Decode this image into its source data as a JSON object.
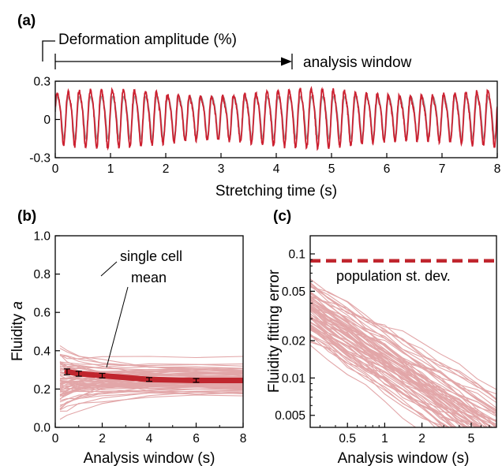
{
  "chart_data": [
    {
      "panel": "(a)",
      "type": "line",
      "header": "Deformation amplitude (%)",
      "arrow_label": "analysis window",
      "xlabel": "Stretching time (s)",
      "ylabel": "",
      "xlim": [
        0,
        8
      ],
      "ylim": [
        -0.3,
        0.3
      ],
      "xticks": [
        "0",
        "1",
        "2",
        "3",
        "4",
        "5",
        "6",
        "7",
        "8"
      ],
      "yticks": [
        "-0.3",
        "0",
        "0.3"
      ],
      "analysis_window_end": 4.3,
      "series_colors": {
        "applied": "#a0a0a0",
        "measured": "#cc2030"
      },
      "oscillation_periods": 40
    },
    {
      "panel": "(b)",
      "type": "line",
      "xlabel": "Analysis window (s)",
      "ylabel_text": "Fluidity ",
      "ylabel_symbol": "a",
      "xlim": [
        0,
        8
      ],
      "ylim": [
        0,
        1.0
      ],
      "xticks": [
        "0",
        "2",
        "4",
        "6",
        "8"
      ],
      "yticks": [
        "0.0",
        "0.2",
        "0.4",
        "0.6",
        "0.8",
        "1.0"
      ],
      "annotations": [
        "single cell",
        "mean"
      ],
      "mean": {
        "x": [
          0.5,
          1,
          2,
          4,
          6,
          8
        ],
        "y": [
          0.29,
          0.28,
          0.27,
          0.25,
          0.245,
          0.245
        ],
        "err": [
          0.015,
          0.013,
          0.012,
          0.01,
          0.01,
          0
        ]
      },
      "single_cell_count": 70,
      "colors": {
        "single": "#e2a6a8",
        "mean": "#c0262e"
      }
    },
    {
      "panel": "(c)",
      "type": "line",
      "xlabel": "Analysis window (s)",
      "ylabel": "Fluidity fitting error",
      "xscale": "log",
      "yscale": "log",
      "xlim": [
        0.25,
        8
      ],
      "ylim": [
        0.004,
        0.14
      ],
      "xticks": [
        "0.5",
        "1",
        "2",
        "5"
      ],
      "yticks": [
        "0.005",
        "0.01",
        "0.02",
        "0.05",
        "0.1"
      ],
      "reference_value": 0.088,
      "reference_label": "population st. dev.",
      "single_cell_count": 70,
      "colors": {
        "single": "#e2a6a8",
        "reference": "#c0262e"
      }
    }
  ]
}
